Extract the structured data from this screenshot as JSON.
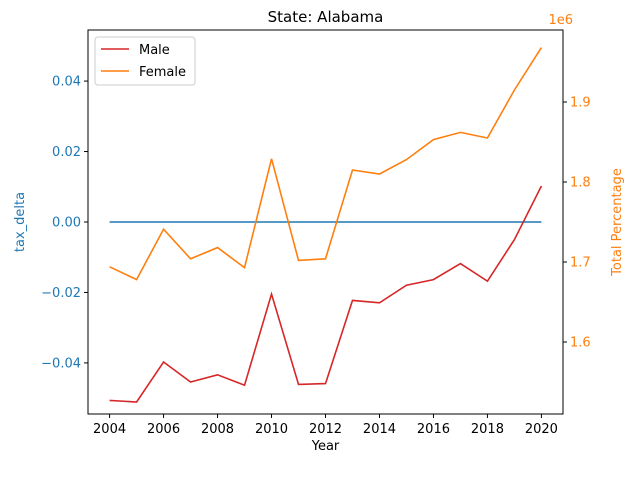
{
  "chart_data": {
    "type": "line",
    "title": "State: Alabama",
    "xlabel": "Year",
    "ylabel_left": "tax_delta",
    "ylabel_right": "Total Percentage",
    "right_axis_offset_label": "1e6",
    "colors": {
      "left_axis": "#1f77b4",
      "right_axis": "#ff7f0e",
      "tax_delta_line": "#1f77b4",
      "male": "#d62728",
      "female": "#ff7f0e"
    },
    "legend_position": "upper-left",
    "grid": false,
    "x": [
      2004,
      2005,
      2006,
      2007,
      2008,
      2009,
      2010,
      2011,
      2012,
      2013,
      2014,
      2015,
      2016,
      2017,
      2018,
      2019,
      2020
    ],
    "x_ticks": [
      "2004",
      "2006",
      "2008",
      "2010",
      "2012",
      "2014",
      "2016",
      "2018",
      "2020"
    ],
    "x_tick_values": [
      2004,
      2006,
      2008,
      2010,
      2012,
      2014,
      2016,
      2018,
      2020
    ],
    "xlim": [
      2003.2,
      2020.8
    ],
    "left_axis": {
      "ylim": [
        -0.0545,
        0.0545
      ],
      "ticks": [
        -0.04,
        -0.02,
        0.0,
        0.02,
        0.04
      ],
      "tick_labels": [
        "−0.04",
        "−0.02",
        "0.00",
        "0.02",
        "0.04"
      ],
      "series": [
        {
          "key": "tax_delta",
          "values": [
            0,
            0,
            0,
            0,
            0,
            0,
            0,
            0,
            0,
            0,
            0,
            0,
            0,
            0,
            0,
            0,
            0
          ]
        }
      ]
    },
    "right_axis": {
      "ylim": [
        1.51,
        1.99
      ],
      "ticks": [
        1.6,
        1.7,
        1.8,
        1.9
      ],
      "tick_labels": [
        "1.6",
        "1.7",
        "1.8",
        "1.9"
      ],
      "series": [
        {
          "name": "Male",
          "values": [
            1.527,
            1.525,
            1.575,
            1.55,
            1.559,
            1.546,
            1.66,
            1.547,
            1.548,
            1.652,
            1.649,
            1.671,
            1.678,
            1.698,
            1.676,
            1.728,
            1.795
          ]
        },
        {
          "name": "Female",
          "values": [
            1.694,
            1.678,
            1.741,
            1.704,
            1.718,
            1.693,
            1.829,
            1.702,
            1.704,
            1.815,
            1.81,
            1.828,
            1.853,
            1.862,
            1.855,
            1.915,
            1.968
          ]
        }
      ]
    }
  }
}
